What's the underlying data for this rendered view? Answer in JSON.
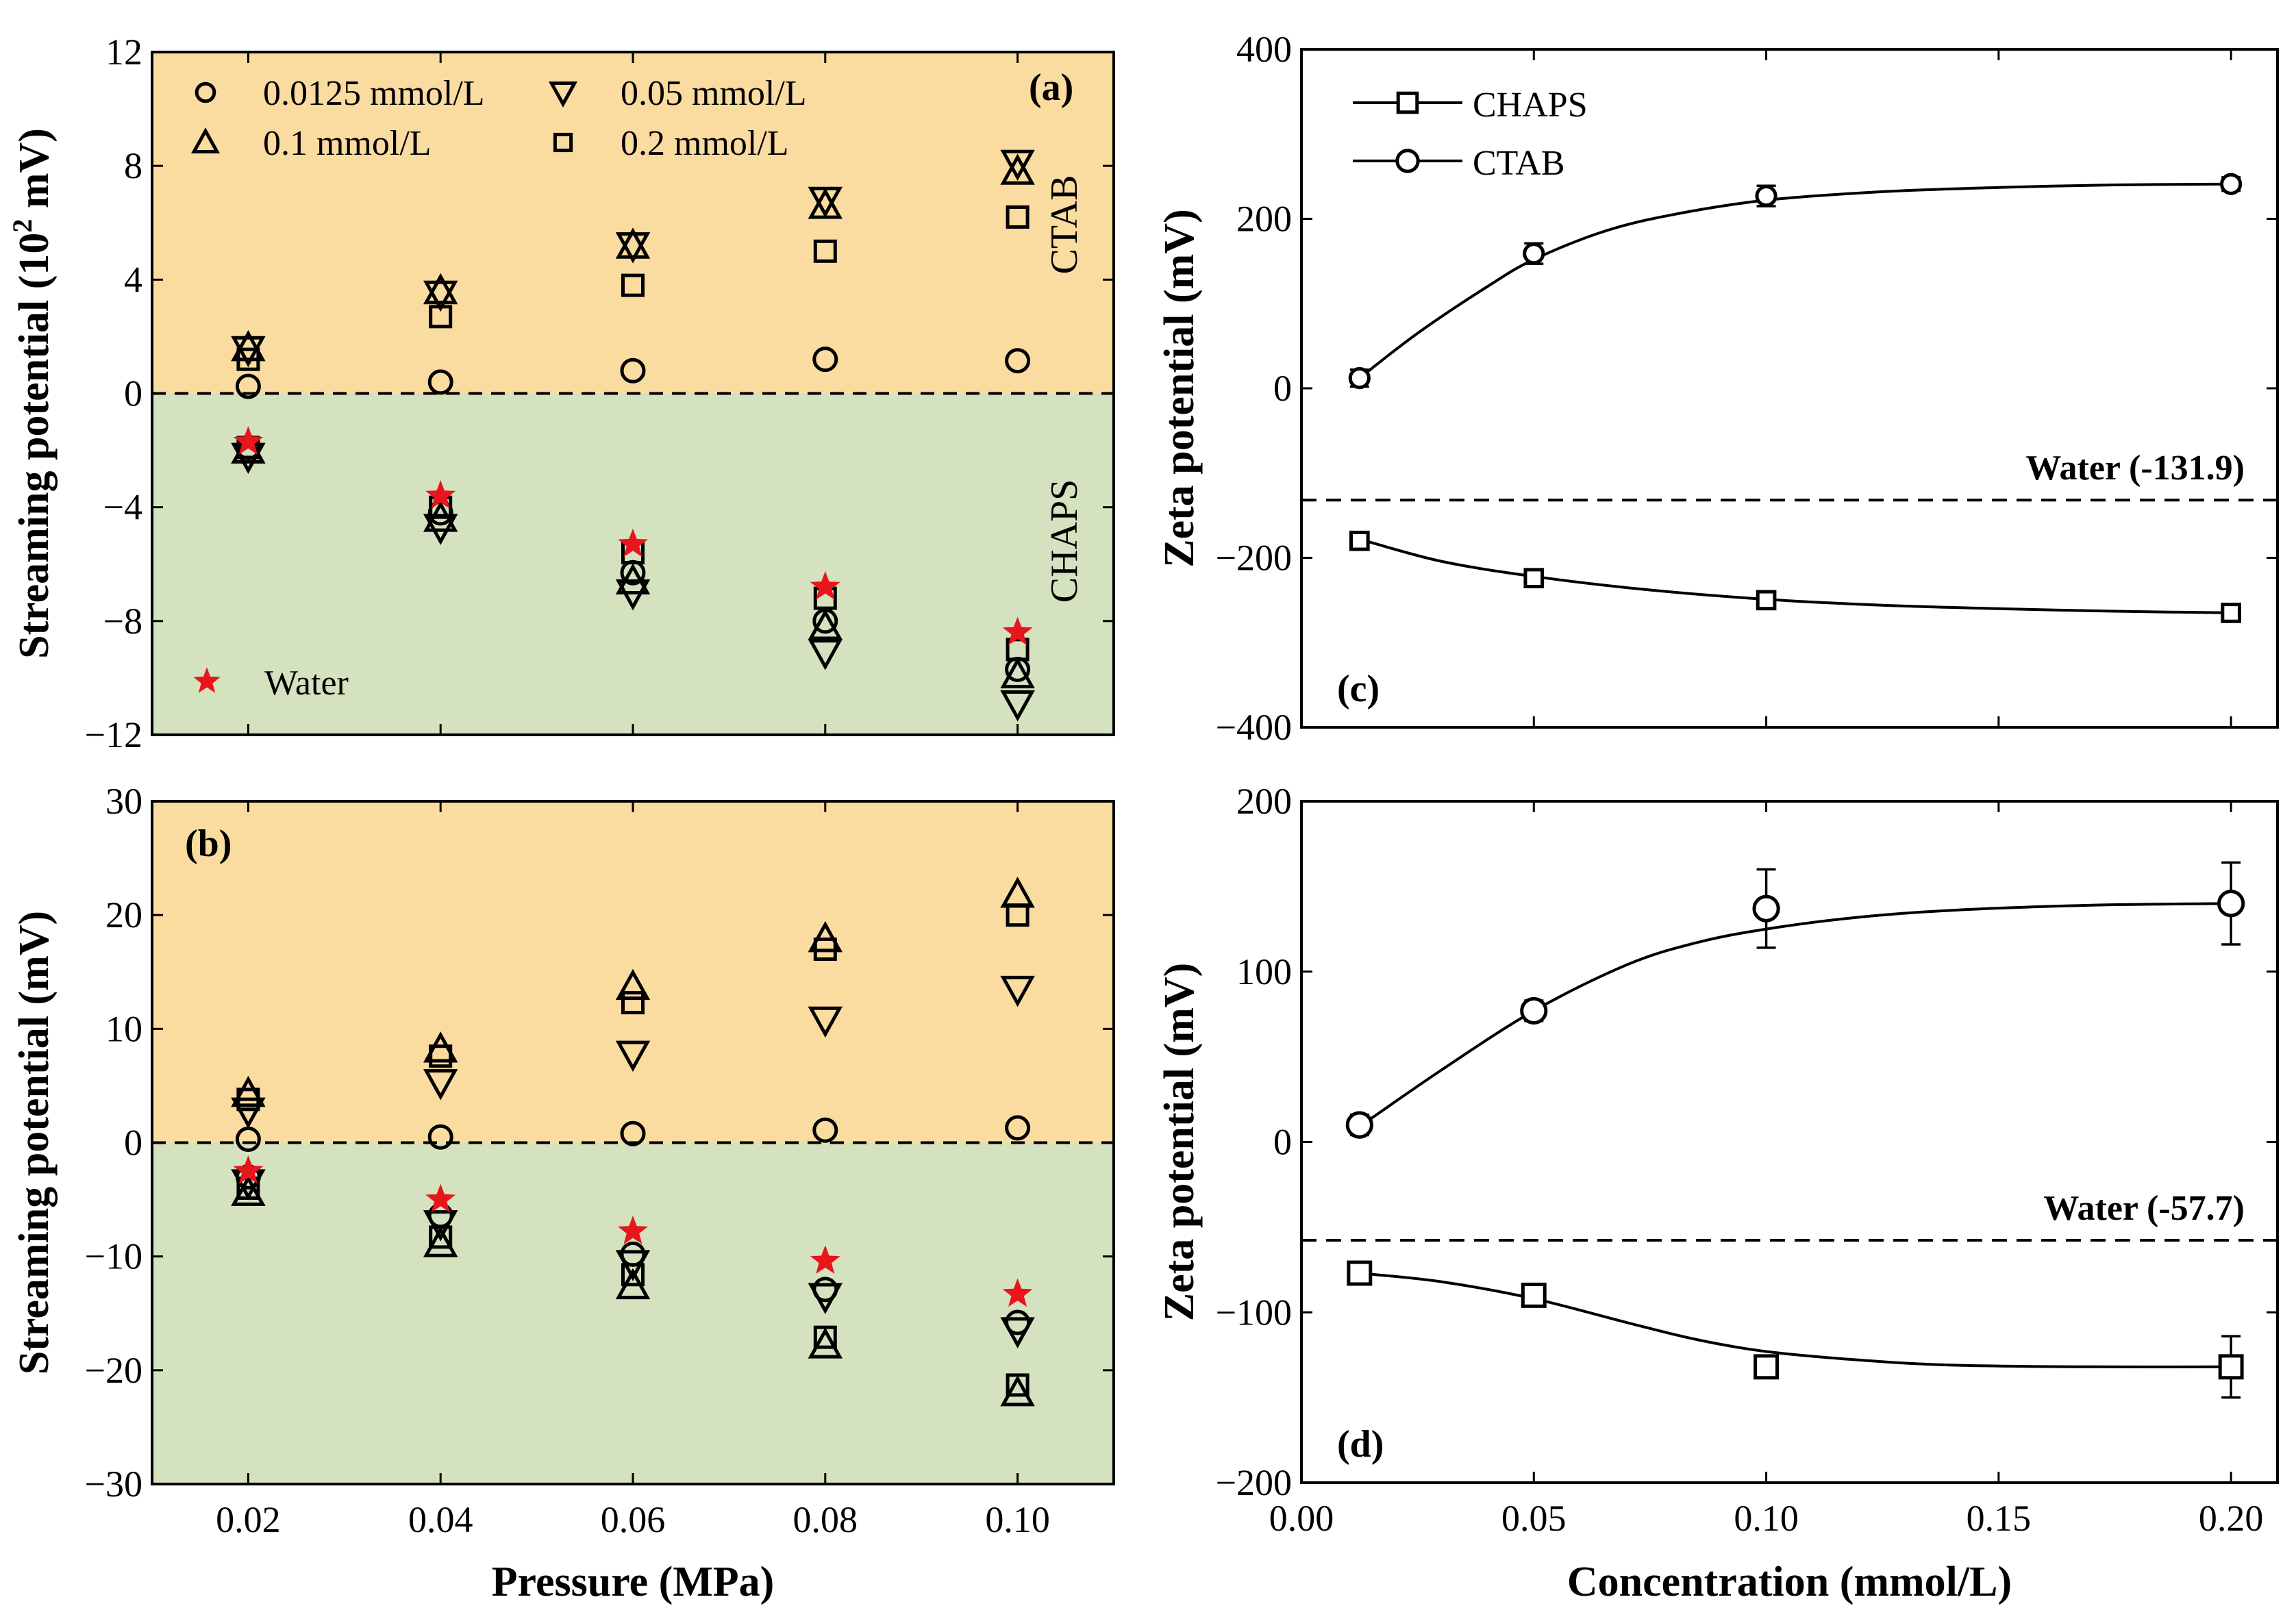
{
  "figure": {
    "panel_labels": [
      "(a)",
      "(b)",
      "(c)",
      "(d)"
    ]
  },
  "colors": {
    "cationic_region": "#fbdca0",
    "anionic_region": "#d5e2bf",
    "water_marker": "#e8151b",
    "axis": "#000000"
  },
  "chart_data": [
    {
      "id": "a",
      "type": "scatter",
      "panel_label": "(a)",
      "title": "",
      "xlabel": "",
      "ylabel": "Streaming potential (10² mV)",
      "ylabel_main": "Streaming potential (10",
      "ylabel_sup": "2",
      "ylabel_tail": " mV)",
      "xlim": [
        0.01,
        0.11
      ],
      "ylim": [
        -12,
        12
      ],
      "x_ticks": [
        0.02,
        0.04,
        0.06,
        0.08,
        0.1
      ],
      "x_tick_labels": [],
      "y_ticks": [
        -12,
        -8,
        -4,
        0,
        4,
        8,
        12
      ],
      "y_tick_labels": [
        "−12",
        "−8",
        "−4",
        "0",
        "4",
        "8",
        "12"
      ],
      "zero_line": "dashed",
      "regions": {
        "positive": "CTAB",
        "negative": "CHAPS"
      },
      "legend": [
        {
          "label": "0.0125 mmol/L",
          "marker": "circle"
        },
        {
          "label": "0.05 mmol/L",
          "marker": "triangle-down"
        },
        {
          "label": "0.1 mmol/L",
          "marker": "triangle-up"
        },
        {
          "label": "0.2 mmol/L",
          "marker": "square"
        }
      ],
      "water_legend": "Water",
      "x": [
        0.02,
        0.04,
        0.06,
        0.08,
        0.1
      ],
      "series": [
        {
          "name": "CTAB 0.0125 mmol/L",
          "marker": "circle",
          "values": [
            0.25,
            0.4,
            0.8,
            1.2,
            1.15
          ]
        },
        {
          "name": "CTAB 0.05 mmol/L",
          "marker": "triangle-down",
          "values": [
            1.55,
            3.5,
            5.2,
            6.8,
            8.1
          ]
        },
        {
          "name": "CTAB 0.1 mmol/L",
          "marker": "triangle-up",
          "values": [
            1.6,
            3.6,
            5.2,
            6.6,
            7.8
          ]
        },
        {
          "name": "CTAB 0.2 mmol/L",
          "marker": "square",
          "values": [
            1.2,
            2.7,
            3.8,
            5.0,
            6.2
          ]
        },
        {
          "name": "CHAPS 0.0125 mmol/L",
          "marker": "circle",
          "values": [
            -1.9,
            -4.2,
            -6.3,
            -8.0,
            -9.7
          ]
        },
        {
          "name": "CHAPS 0.05 mmol/L",
          "marker": "triangle-down",
          "values": [
            -2.2,
            -4.7,
            -7.0,
            -9.1,
            -10.9
          ]
        },
        {
          "name": "CHAPS 0.1 mmol/L",
          "marker": "triangle-up",
          "values": [
            -2.0,
            -4.4,
            -6.6,
            -8.2,
            -9.9
          ]
        },
        {
          "name": "CHAPS 0.2 mmol/L",
          "marker": "square",
          "values": [
            -1.9,
            -4.0,
            -5.6,
            -7.2,
            -9.0
          ]
        },
        {
          "name": "Water",
          "marker": "star",
          "values": [
            -1.7,
            -3.6,
            -5.3,
            -6.8,
            -8.4
          ]
        }
      ]
    },
    {
      "id": "b",
      "type": "scatter",
      "panel_label": "(b)",
      "title": "",
      "xlabel": "Pressure (MPa)",
      "ylabel": "Streaming potential (mV)",
      "xlim": [
        0.01,
        0.11
      ],
      "ylim": [
        -30,
        30
      ],
      "x_ticks": [
        0.02,
        0.04,
        0.06,
        0.08,
        0.1
      ],
      "x_tick_labels": [
        "0.02",
        "0.04",
        "0.06",
        "0.08",
        "0.10"
      ],
      "y_ticks": [
        -30,
        -20,
        -10,
        0,
        10,
        20,
        30
      ],
      "y_tick_labels": [
        "−30",
        "−20",
        "−10",
        "0",
        "10",
        "20",
        "30"
      ],
      "zero_line": "dashed",
      "x": [
        0.02,
        0.04,
        0.06,
        0.08,
        0.1
      ],
      "series": [
        {
          "name": "CTAB 0.0125 mmol/L",
          "marker": "circle",
          "values": [
            0.3,
            0.5,
            0.8,
            1.1,
            1.3
          ]
        },
        {
          "name": "CTAB 0.05 mmol/L",
          "marker": "triangle-down",
          "values": [
            2.8,
            5.3,
            7.8,
            10.8,
            13.5
          ]
        },
        {
          "name": "CTAB 0.1 mmol/L",
          "marker": "triangle-up",
          "values": [
            4.3,
            8.2,
            13.7,
            17.9,
            21.8
          ]
        },
        {
          "name": "CTAB 0.2 mmol/L",
          "marker": "square",
          "values": [
            3.8,
            7.6,
            12.3,
            17.0,
            20.0
          ]
        },
        {
          "name": "CHAPS 0.0125 mmol/L",
          "marker": "circle",
          "values": [
            -3.0,
            -6.4,
            -9.8,
            -12.9,
            -15.8
          ]
        },
        {
          "name": "CHAPS 0.05 mmol/L",
          "marker": "triangle-down",
          "values": [
            -3.5,
            -7.1,
            -10.6,
            -13.5,
            -16.5
          ]
        },
        {
          "name": "CHAPS 0.1 mmol/L",
          "marker": "triangle-up",
          "values": [
            -4.4,
            -8.9,
            -12.6,
            -17.8,
            -22.0
          ]
        },
        {
          "name": "CHAPS 0.2 mmol/L",
          "marker": "square",
          "values": [
            -4.0,
            -8.3,
            -11.6,
            -17.1,
            -21.3
          ]
        },
        {
          "name": "Water",
          "marker": "star",
          "values": [
            -2.5,
            -5.0,
            -7.8,
            -10.4,
            -13.3
          ]
        }
      ]
    },
    {
      "id": "c",
      "type": "line",
      "panel_label": "(c)",
      "title": "",
      "xlabel": "",
      "ylabel": "Zeta potential (mV)",
      "xlim": [
        0,
        0.21
      ],
      "ylim": [
        -400,
        400
      ],
      "x_ticks": [
        0,
        0.05,
        0.1,
        0.15,
        0.2
      ],
      "x_tick_labels": [],
      "y_ticks": [
        -400,
        -200,
        0,
        200,
        400
      ],
      "y_tick_labels": [
        "−400",
        "−200",
        "0",
        "200",
        "400"
      ],
      "water_reference": {
        "label": "Water (-131.9)",
        "value": -131.9
      },
      "legend": [
        {
          "label": "CHAPS",
          "marker": "square"
        },
        {
          "label": "CTAB",
          "marker": "circle"
        }
      ],
      "x": [
        0.0125,
        0.05,
        0.1,
        0.2
      ],
      "series": [
        {
          "name": "CHAPS",
          "marker": "square",
          "values": [
            -180,
            -224,
            -250,
            -265
          ],
          "errors": [
            8,
            8,
            10,
            8
          ]
        },
        {
          "name": "CTAB",
          "marker": "circle",
          "values": [
            12,
            159,
            227,
            241
          ],
          "errors": [
            10,
            12,
            12,
            8
          ]
        }
      ],
      "fit_curves": [
        {
          "name": "CHAPS",
          "x": [
            0.0125,
            0.03,
            0.05,
            0.075,
            0.1,
            0.125,
            0.15,
            0.175,
            0.2
          ],
          "values": [
            -178,
            -204,
            -222,
            -238,
            -249,
            -256,
            -260,
            -263,
            -265
          ]
        },
        {
          "name": "CTAB",
          "x": [
            0.0125,
            0.025,
            0.04,
            0.05,
            0.065,
            0.08,
            0.1,
            0.125,
            0.15,
            0.175,
            0.2
          ],
          "values": [
            12,
            65,
            120,
            152,
            185,
            205,
            222,
            232,
            237,
            240,
            241
          ]
        }
      ]
    },
    {
      "id": "d",
      "type": "line",
      "panel_label": "(d)",
      "title": "",
      "xlabel": "Concentration (mmol/L)",
      "ylabel": "Zeta potential (mV)",
      "xlim": [
        0,
        0.21
      ],
      "ylim": [
        -200,
        200
      ],
      "x_ticks": [
        0,
        0.05,
        0.1,
        0.15,
        0.2
      ],
      "x_tick_labels": [
        "0.00",
        "0.05",
        "0.10",
        "0.15",
        "0.20"
      ],
      "y_ticks": [
        -200,
        -100,
        0,
        100,
        200
      ],
      "y_tick_labels": [
        "−200",
        "−100",
        "0",
        "100",
        "200"
      ],
      "water_reference": {
        "label": "Water (-57.7)",
        "value": -57.7
      },
      "x": [
        0.0125,
        0.05,
        0.1,
        0.2
      ],
      "series": [
        {
          "name": "CHAPS",
          "marker": "square",
          "values": [
            -77,
            -90,
            -132,
            -132
          ],
          "errors": [
            5,
            6,
            6,
            18
          ]
        },
        {
          "name": "CTAB",
          "marker": "circle",
          "values": [
            10,
            77,
            137,
            140
          ],
          "errors": [
            6,
            6,
            23,
            24
          ]
        }
      ],
      "fit_curves": [
        {
          "name": "CHAPS",
          "x": [
            0.0125,
            0.03,
            0.05,
            0.07,
            0.085,
            0.1,
            0.12,
            0.14,
            0.17,
            0.2
          ],
          "values": [
            -77,
            -82,
            -92,
            -106,
            -116,
            -123,
            -128,
            -131,
            -132,
            -132
          ]
        },
        {
          "name": "CTAB",
          "x": [
            0.0125,
            0.03,
            0.05,
            0.07,
            0.085,
            0.1,
            0.12,
            0.14,
            0.17,
            0.2
          ],
          "values": [
            9,
            42,
            77,
            104,
            117,
            125,
            132,
            136,
            139,
            140
          ]
        }
      ]
    }
  ]
}
